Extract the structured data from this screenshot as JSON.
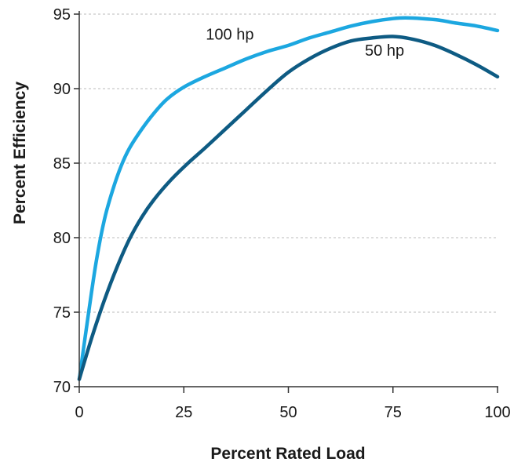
{
  "chart_data": {
    "type": "line",
    "title": "",
    "xlabel": "Percent Rated Load",
    "ylabel": "Percent Efficiency",
    "xlim": [
      0,
      100
    ],
    "ylim": [
      70,
      95
    ],
    "xticks": [
      0,
      25,
      50,
      75,
      100
    ],
    "yticks": [
      70,
      75,
      80,
      85,
      90,
      95
    ],
    "grid": "horizontal-dashed",
    "legend": "none (series labeled directly on plot)",
    "axis_color": "#333333",
    "grid_color": "#bbbbbb",
    "series": [
      {
        "name": "100 hp",
        "color": "#1ca7e0",
        "label_at": [
          36,
          93.3
        ],
        "x": [
          0,
          2,
          4,
          6,
          8,
          10,
          12,
          15,
          18,
          21,
          25,
          30,
          35,
          40,
          45,
          50,
          55,
          60,
          65,
          70,
          75,
          78,
          82,
          86,
          90,
          95,
          100
        ],
        "y": [
          70.5,
          74.5,
          78.3,
          81.2,
          83.2,
          84.8,
          86.0,
          87.3,
          88.4,
          89.3,
          90.1,
          90.8,
          91.4,
          92.0,
          92.5,
          92.9,
          93.4,
          93.8,
          94.2,
          94.5,
          94.7,
          94.75,
          94.7,
          94.6,
          94.4,
          94.2,
          93.9
        ]
      },
      {
        "name": "50 hp",
        "color": "#0e5b83",
        "label_at": [
          73,
          92.2
        ],
        "x": [
          0,
          3,
          6,
          9,
          12,
          15,
          18,
          22,
          26,
          30,
          35,
          40,
          45,
          50,
          55,
          60,
          65,
          70,
          75,
          80,
          85,
          90,
          95,
          100
        ],
        "y": [
          70.5,
          73.3,
          75.8,
          78.0,
          79.9,
          81.4,
          82.6,
          83.9,
          85.0,
          86.0,
          87.3,
          88.6,
          89.9,
          91.1,
          92.0,
          92.7,
          93.2,
          93.4,
          93.5,
          93.3,
          92.9,
          92.3,
          91.6,
          90.8
        ]
      }
    ]
  }
}
